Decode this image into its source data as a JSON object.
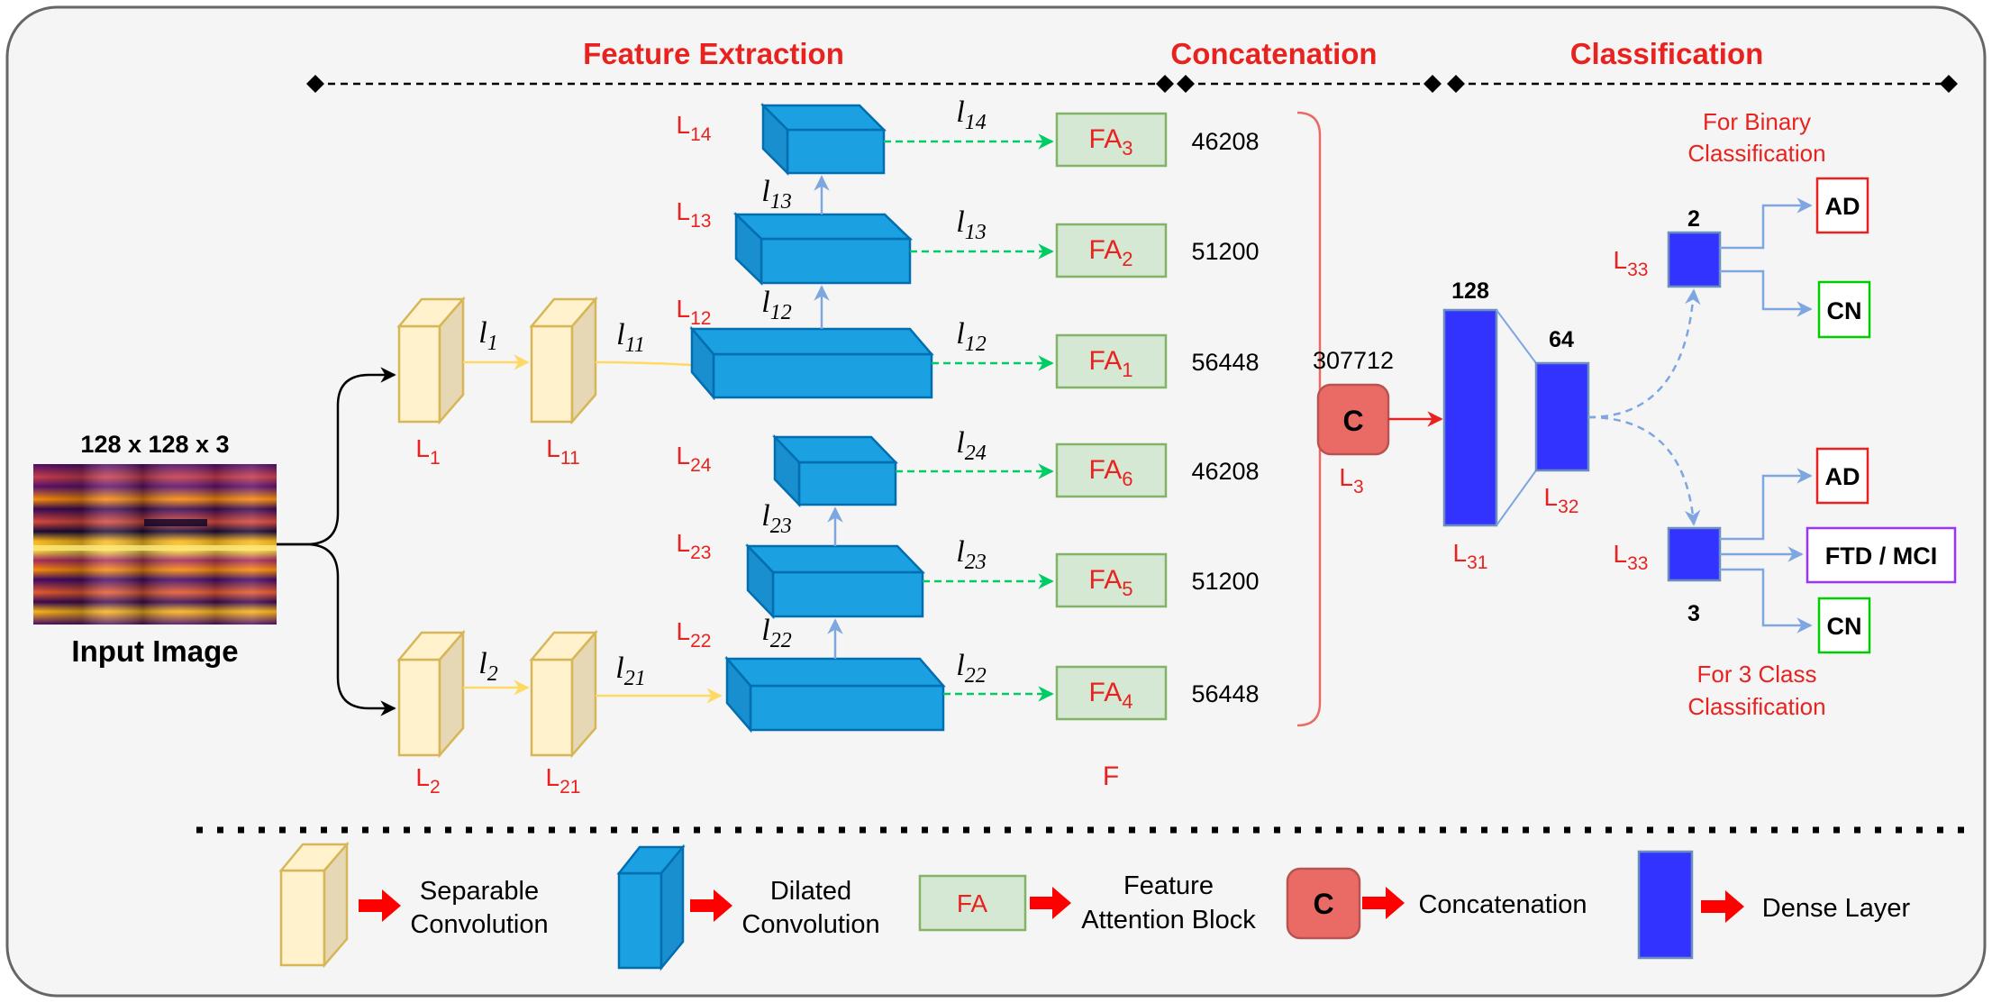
{
  "sections": {
    "feature_extraction": "Feature Extraction",
    "concatenation": "Concatenation",
    "classification": "Classification"
  },
  "input": {
    "size": "128 x 128 x 3",
    "label": "Input Image"
  },
  "layers": {
    "l1": {
      "base": "L",
      "sub": "1"
    },
    "l11": {
      "base": "L",
      "sub": "11"
    },
    "l2": {
      "base": "L",
      "sub": "2"
    },
    "l21": {
      "base": "L",
      "sub": "21"
    },
    "l12": {
      "base": "L",
      "sub": "12"
    },
    "l13": {
      "base": "L",
      "sub": "13"
    },
    "l14": {
      "base": "L",
      "sub": "14"
    },
    "l22": {
      "base": "L",
      "sub": "22"
    },
    "l23": {
      "base": "L",
      "sub": "23"
    },
    "l24": {
      "base": "L",
      "sub": "24"
    },
    "l3": {
      "base": "L",
      "sub": "3"
    },
    "l31": {
      "base": "L",
      "sub": "31"
    },
    "l32": {
      "base": "L",
      "sub": "32"
    },
    "l33a": {
      "base": "L",
      "sub": "33"
    },
    "l33b": {
      "base": "L",
      "sub": "33"
    }
  },
  "edges": {
    "e1": {
      "base": "l",
      "sub": "1"
    },
    "e11": {
      "base": "l",
      "sub": "11"
    },
    "e2": {
      "base": "l",
      "sub": "2"
    },
    "e21": {
      "base": "l",
      "sub": "21"
    },
    "e12a": {
      "base": "l",
      "sub": "12"
    },
    "e12b": {
      "base": "l",
      "sub": "12"
    },
    "e13a": {
      "base": "l",
      "sub": "13"
    },
    "e13b": {
      "base": "l",
      "sub": "13"
    },
    "e14": {
      "base": "l",
      "sub": "14"
    },
    "e22a": {
      "base": "l",
      "sub": "22"
    },
    "e22b": {
      "base": "l",
      "sub": "22"
    },
    "e23a": {
      "base": "l",
      "sub": "23"
    },
    "e23b": {
      "base": "l",
      "sub": "23"
    },
    "e24": {
      "base": "l",
      "sub": "24"
    }
  },
  "fa_blocks": {
    "fa1": {
      "base": "FA",
      "sub": "1",
      "count": "56448"
    },
    "fa2": {
      "base": "FA",
      "sub": "2",
      "count": "51200"
    },
    "fa3": {
      "base": "FA",
      "sub": "3",
      "count": "46208"
    },
    "fa4": {
      "base": "FA",
      "sub": "4",
      "count": "56448"
    },
    "fa5": {
      "base": "FA",
      "sub": "5",
      "count": "51200"
    },
    "fa6": {
      "base": "FA",
      "sub": "6",
      "count": "46208"
    }
  },
  "fused_label": "F",
  "concat": {
    "symbol": "C",
    "count": "307712"
  },
  "dense": {
    "d128": "128",
    "d64": "64",
    "d2": "2",
    "d3": "3"
  },
  "binary_caption": [
    "For Binary",
    "Classification"
  ],
  "three_class_caption": [
    "For 3 Class",
    "Classification"
  ],
  "outputs": {
    "ad": "AD",
    "cn": "CN",
    "ftd_mci": "FTD / MCI"
  },
  "legend": {
    "separable": [
      "Separable",
      "Convolution"
    ],
    "dilated": [
      "Dilated",
      "Convolution"
    ],
    "fa_symbol": "FA",
    "attention": [
      "Feature",
      "Attention Block"
    ],
    "c_symbol": "C",
    "concatenation": "Concatenation",
    "dense": "Dense Layer"
  },
  "colors": {
    "red_text": "#e8231f",
    "separable_fill": "#fff2cc",
    "separable_stroke": "#d6b656",
    "dilated_fill": "#1ba1e2",
    "dilated_stroke": "#006eaf",
    "fa_fill": "#d5e8d4",
    "fa_stroke": "#82b366",
    "concat_fill": "#ea6b66",
    "dense_fill": "#3333ff",
    "edge_blue": "#7ea6e0",
    "edge_green": "#00cc66",
    "edge_yellow": "#ffd966"
  }
}
